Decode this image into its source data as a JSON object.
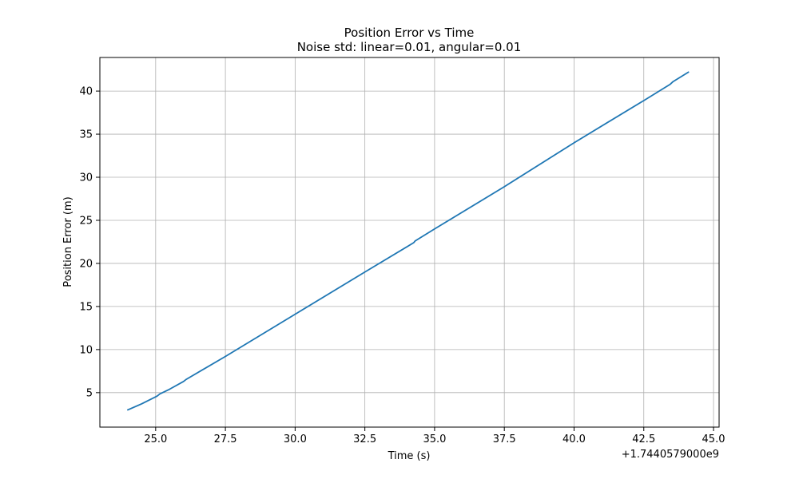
{
  "chart_data": {
    "type": "line",
    "title": "Position Error vs Time",
    "subtitle": "Noise std: linear=0.01, angular=0.01",
    "xlabel": "Time (s)",
    "ylabel": "Position Error (m)",
    "x_offset_label": "+1.7440579000e9",
    "xlim": [
      23.0,
      45.2
    ],
    "ylim": [
      1.0,
      43.9
    ],
    "xticks": [
      25.0,
      27.5,
      30.0,
      32.5,
      35.0,
      37.5,
      40.0,
      42.5,
      45.0
    ],
    "xtick_labels": [
      "25.0",
      "27.5",
      "30.0",
      "32.5",
      "35.0",
      "37.5",
      "40.0",
      "42.5",
      "45.0"
    ],
    "yticks": [
      5,
      10,
      15,
      20,
      25,
      30,
      35,
      40
    ],
    "ytick_labels": [
      "5",
      "10",
      "15",
      "20",
      "25",
      "30",
      "35",
      "40"
    ],
    "grid": true,
    "series": [
      {
        "color": "#1f77b4",
        "x": [
          24.0,
          24.5,
          25.05,
          25.15,
          25.5,
          26.0,
          26.1,
          27.5,
          30.0,
          32.5,
          34.25,
          34.3,
          35.0,
          37.5,
          40.0,
          42.5,
          43.45,
          43.55,
          44.1
        ],
        "y": [
          3.0,
          3.7,
          4.6,
          4.85,
          5.4,
          6.3,
          6.55,
          9.2,
          14.1,
          19.0,
          22.4,
          22.6,
          24.0,
          28.9,
          34.0,
          38.9,
          40.8,
          41.1,
          42.2
        ]
      }
    ]
  }
}
